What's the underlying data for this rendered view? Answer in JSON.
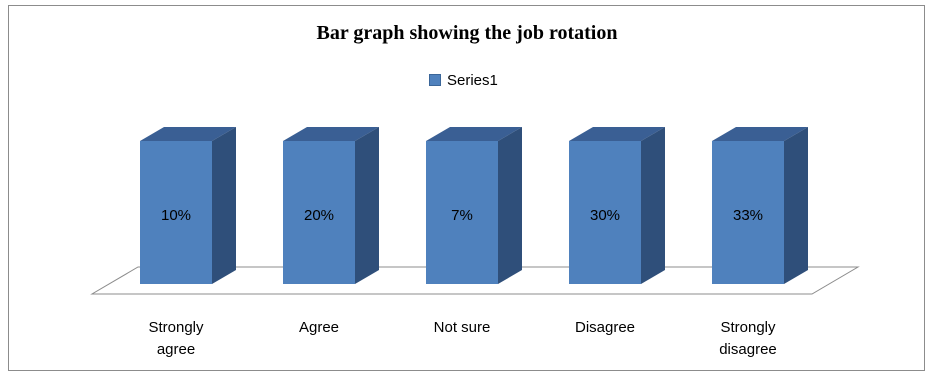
{
  "chart_data": {
    "type": "bar",
    "title": "Bar graph showing the job rotation",
    "categories": [
      "Strongly agree",
      "Agree",
      "Not sure",
      "Disagree",
      "Strongly disagree"
    ],
    "category_lines": [
      [
        "Strongly",
        "agree"
      ],
      [
        "Agree"
      ],
      [
        "Not sure"
      ],
      [
        "Disagree"
      ],
      [
        "Strongly",
        "disagree"
      ]
    ],
    "series": [
      {
        "name": "Series1",
        "values": [
          10,
          20,
          7,
          30,
          33
        ],
        "labels": [
          "10%",
          "20%",
          "7%",
          "30%",
          "33%"
        ]
      }
    ],
    "legend_position": "top",
    "grid": false,
    "style_3d": true,
    "colors": {
      "front": "#4f81bd",
      "side": "#2f4f7a",
      "top": "#3a5f94",
      "floor": "#ffffff"
    }
  }
}
